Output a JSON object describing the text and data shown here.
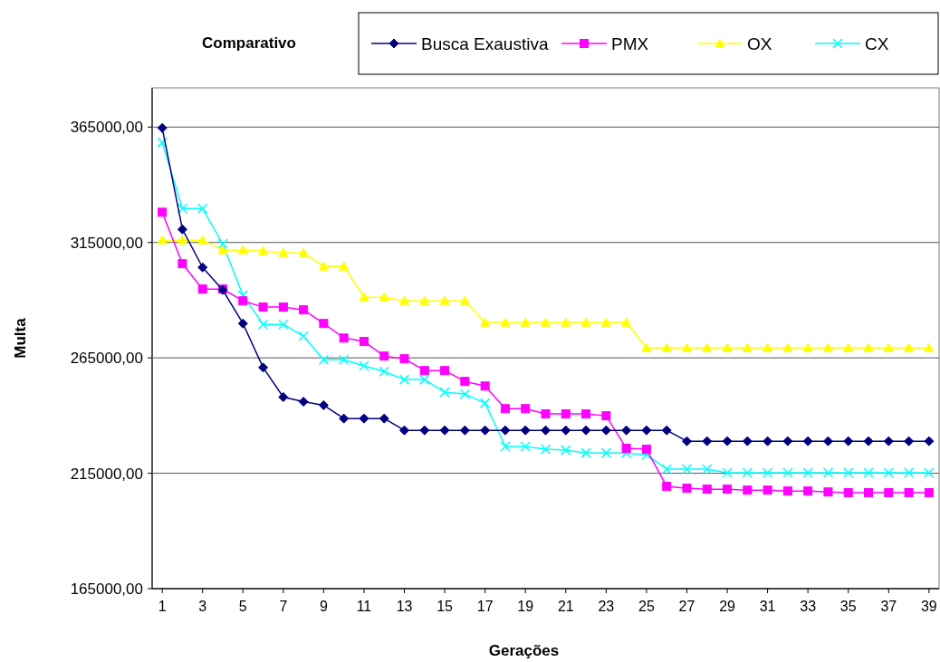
{
  "chart_data": {
    "type": "line",
    "title": "Comparativo",
    "xlabel": "Gerações",
    "ylabel": "Multa",
    "x": [
      1,
      2,
      3,
      4,
      5,
      6,
      7,
      8,
      9,
      10,
      11,
      12,
      13,
      14,
      15,
      16,
      17,
      18,
      19,
      20,
      21,
      22,
      23,
      24,
      25,
      26,
      27,
      28,
      29,
      30,
      31,
      32,
      33,
      34,
      35,
      36,
      37,
      38,
      39
    ],
    "xlim": [
      0.5,
      39.5
    ],
    "xticks": [
      1,
      3,
      5,
      7,
      9,
      11,
      13,
      15,
      17,
      19,
      21,
      23,
      25,
      27,
      29,
      31,
      33,
      35,
      37,
      39
    ],
    "series": [
      {
        "name": "Busca Exaustiva",
        "color": "#000080",
        "marker": "diamond",
        "values": [
          364600,
          320700,
          304200,
          294400,
          279900,
          260800,
          248000,
          246000,
          244500,
          238700,
          238700,
          238700,
          233600,
          233600,
          233600,
          233600,
          233600,
          233600,
          233600,
          233600,
          233600,
          233600,
          233600,
          233600,
          233600,
          233600,
          228900,
          228900,
          228900,
          228900,
          228900,
          228900,
          228900,
          228900,
          228900,
          228900,
          228900,
          228900,
          228900
        ]
      },
      {
        "name": "PMX",
        "color": "#ff00ff",
        "marker": "square",
        "values": [
          328100,
          305800,
          294800,
          294800,
          289700,
          287000,
          287000,
          285800,
          279900,
          273600,
          272100,
          265800,
          264600,
          259500,
          259500,
          254800,
          252800,
          243000,
          243000,
          240700,
          240700,
          240700,
          239900,
          225800,
          225400,
          209300,
          208500,
          208100,
          208100,
          207700,
          207700,
          207300,
          207300,
          206900,
          206600,
          206600,
          206600,
          206600,
          206600
        ]
      },
      {
        "name": "OX",
        "color": "#ffff00",
        "marker": "triangle",
        "values": [
          316000,
          316000,
          316000,
          311700,
          311700,
          311300,
          310500,
          310500,
          304600,
          304600,
          291300,
          291300,
          289700,
          289700,
          289700,
          289700,
          280300,
          280300,
          280300,
          280300,
          280300,
          280300,
          280300,
          280300,
          269300,
          269300,
          269300,
          269300,
          269300,
          269300,
          269300,
          269300,
          269300,
          269300,
          269300,
          269300,
          269300,
          269300,
          269300
        ]
      },
      {
        "name": "CX",
        "color": "#00ffff",
        "marker": "cross",
        "values": [
          358300,
          329700,
          329700,
          314400,
          292100,
          279500,
          279500,
          274400,
          264200,
          264200,
          261500,
          259100,
          255600,
          255600,
          250100,
          249300,
          245400,
          226600,
          226600,
          225400,
          225000,
          223800,
          223800,
          223800,
          223000,
          216800,
          216800,
          216800,
          215200,
          215200,
          215200,
          215200,
          215200,
          215200,
          215200,
          215200,
          215200,
          215200,
          215200
        ]
      }
    ],
    "ylim": [
      165000,
      382000
    ],
    "yticks": [
      {
        "value": 165000,
        "label": "165000,00"
      },
      {
        "value": 215000,
        "label": "215000,00"
      },
      {
        "value": 265000,
        "label": "265000,00"
      },
      {
        "value": 315000,
        "label": "315000,00"
      },
      {
        "value": 365000,
        "label": "365000,00"
      }
    ],
    "grid": "y",
    "legend": "top"
  }
}
